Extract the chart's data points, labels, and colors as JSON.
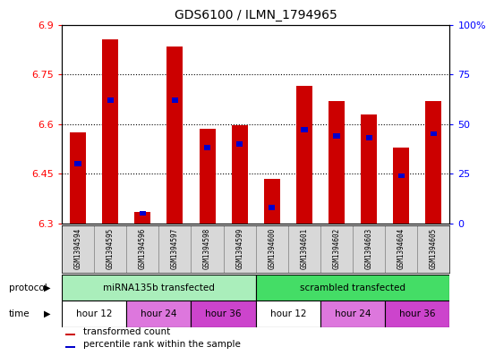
{
  "title": "GDS6100 / ILMN_1794965",
  "samples": [
    "GSM1394594",
    "GSM1394595",
    "GSM1394596",
    "GSM1394597",
    "GSM1394598",
    "GSM1394599",
    "GSM1394600",
    "GSM1394601",
    "GSM1394602",
    "GSM1394603",
    "GSM1394604",
    "GSM1394605"
  ],
  "red_values": [
    6.575,
    6.855,
    6.335,
    6.835,
    6.585,
    6.595,
    6.435,
    6.715,
    6.67,
    6.63,
    6.53,
    6.67
  ],
  "blue_values_pct": [
    30,
    62,
    5,
    62,
    38,
    40,
    8,
    47,
    44,
    43,
    24,
    45
  ],
  "y_min": 6.3,
  "y_max": 6.9,
  "y_ticks": [
    6.3,
    6.45,
    6.6,
    6.75,
    6.9
  ],
  "y2_ticks": [
    0,
    25,
    50,
    75,
    100
  ],
  "bar_color": "#cc0000",
  "blue_color": "#0000cc",
  "plot_bg": "#ffffff",
  "protocol_groups": [
    {
      "label": "miRNA135b transfected",
      "start": 0,
      "end": 6,
      "color": "#aaeebb"
    },
    {
      "label": "scrambled transfected",
      "start": 6,
      "end": 12,
      "color": "#44dd66"
    }
  ],
  "time_colors": {
    "hour 12": "#ffffff",
    "hour 24": "#dd77dd",
    "hour 36": "#cc44cc"
  },
  "time_groups": [
    {
      "label": "hour 12",
      "start": 0,
      "end": 2
    },
    {
      "label": "hour 24",
      "start": 2,
      "end": 4
    },
    {
      "label": "hour 36",
      "start": 4,
      "end": 6
    },
    {
      "label": "hour 12",
      "start": 6,
      "end": 8
    },
    {
      "label": "hour 24",
      "start": 8,
      "end": 10
    },
    {
      "label": "hour 36",
      "start": 10,
      "end": 12
    }
  ],
  "legend_items": [
    {
      "label": "transformed count",
      "color": "#cc0000"
    },
    {
      "label": "percentile rank within the sample",
      "color": "#0000cc"
    }
  ]
}
